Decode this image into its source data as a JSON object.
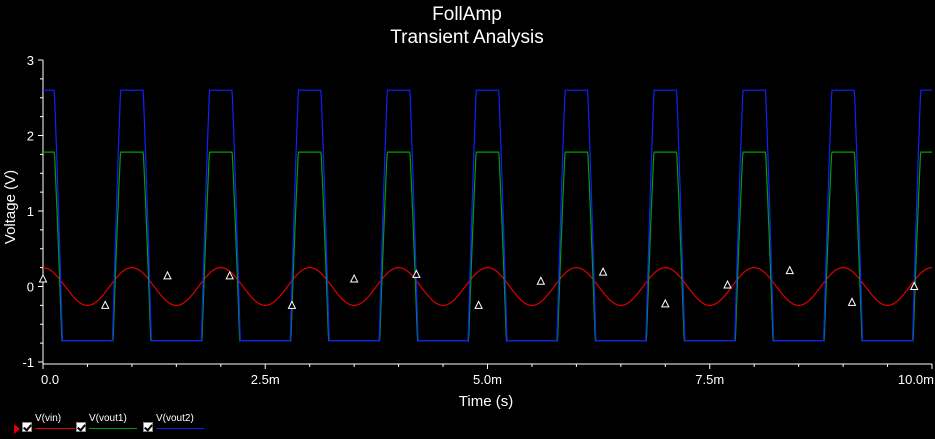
{
  "chart_data": {
    "type": "line",
    "title": "FollAmp",
    "subtitle": "Transient Analysis",
    "xlabel": "Time (s)",
    "ylabel": "Voltage (V)",
    "xlim": [
      0,
      0.01
    ],
    "ylim": [
      -1,
      3
    ],
    "x_ticks": [
      {
        "value": 0,
        "label": "0.0"
      },
      {
        "value": 0.0025,
        "label": "2.5m"
      },
      {
        "value": 0.005,
        "label": "5.0m"
      },
      {
        "value": 0.0075,
        "label": "7.5m"
      },
      {
        "value": 0.01,
        "label": "10.0m"
      }
    ],
    "y_ticks": [
      {
        "value": -1,
        "label": "-1"
      },
      {
        "value": 0,
        "label": "0"
      },
      {
        "value": 1,
        "label": "1"
      },
      {
        "value": 2,
        "label": "2"
      },
      {
        "value": 3,
        "label": "3"
      }
    ],
    "grid": false,
    "legend_position": "bottom-left",
    "series": [
      {
        "name": "V(vin)",
        "color": "#e00000",
        "waveform": "sine",
        "amplitude": 0.25,
        "offset": 0,
        "frequency": 1000,
        "phase_deg": 90,
        "marker": "triangle"
      },
      {
        "name": "V(vout1)",
        "color": "#00a000",
        "waveform": "clipped-sine",
        "amplitude": 5.46,
        "offset": -2.0,
        "frequency": 1000,
        "phase_deg": 90,
        "min": -0.72,
        "max": 1.78
      },
      {
        "name": "V(vout2)",
        "color": "#1020ff",
        "waveform": "clipped-sine",
        "amplitude": 6.6,
        "offset": -2.0,
        "frequency": 1000,
        "phase_deg": 90,
        "min": -0.72,
        "max": 2.6
      }
    ],
    "marker_points": [
      {
        "x": 0.0,
        "y": 0.1
      },
      {
        "x": 0.0007,
        "y": -0.25
      },
      {
        "x": 0.0014,
        "y": 0.14
      },
      {
        "x": 0.0021,
        "y": 0.14
      },
      {
        "x": 0.0028,
        "y": -0.25
      },
      {
        "x": 0.0035,
        "y": 0.1
      },
      {
        "x": 0.0042,
        "y": 0.16
      },
      {
        "x": 0.0049,
        "y": -0.25
      },
      {
        "x": 0.0056,
        "y": 0.07
      },
      {
        "x": 0.0063,
        "y": 0.19
      },
      {
        "x": 0.007,
        "y": -0.23
      },
      {
        "x": 0.0077,
        "y": 0.02
      },
      {
        "x": 0.0084,
        "y": 0.21
      },
      {
        "x": 0.0091,
        "y": -0.21
      },
      {
        "x": 0.0098,
        "y": 0.0
      }
    ]
  },
  "legend": {
    "items": [
      {
        "label": "V(vin)",
        "color": "#e00000"
      },
      {
        "label": "V(vout1)",
        "color": "#00a000"
      },
      {
        "label": "V(vout2)",
        "color": "#1020ff"
      }
    ]
  }
}
